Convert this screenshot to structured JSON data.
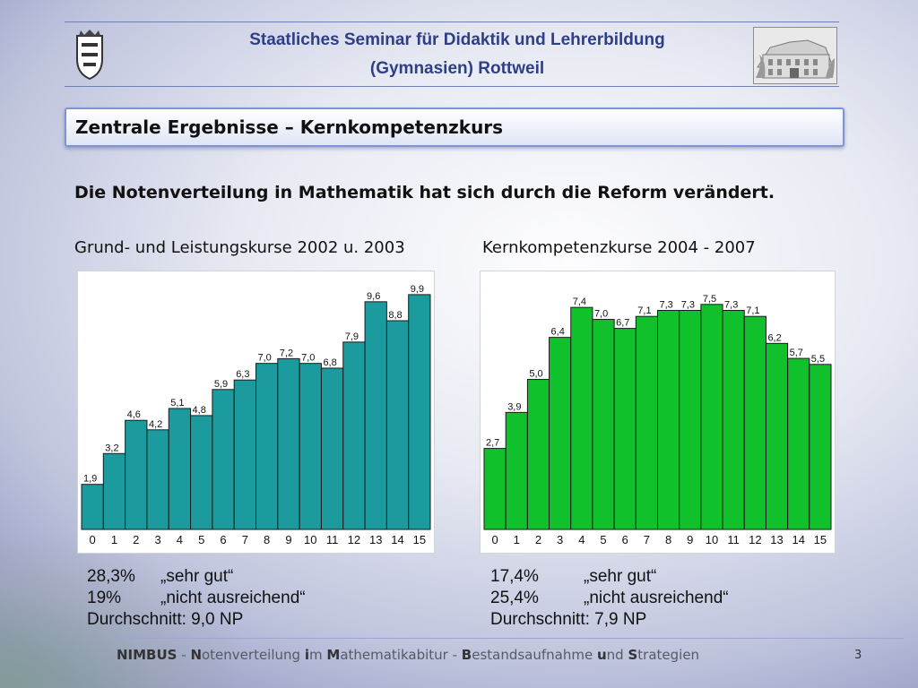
{
  "header": {
    "line1": "Staatliches Seminar für Didaktik und Lehrerbildung",
    "line2": "(Gymnasien) Rottweil"
  },
  "section_title": "Zentrale Ergebnisse – Kernkompetenzkurs",
  "headline": "Die Notenverteilung in Mathematik hat sich durch die Reform verändert.",
  "chart_data": [
    {
      "type": "bar",
      "title": "Grund- und Leistungskurse 2002 u. 2003",
      "categories": [
        "0",
        "1",
        "2",
        "3",
        "4",
        "5",
        "6",
        "7",
        "8",
        "9",
        "10",
        "11",
        "12",
        "13",
        "14",
        "15"
      ],
      "values": [
        1.9,
        3.2,
        4.6,
        4.2,
        5.1,
        4.8,
        5.9,
        6.3,
        7.0,
        7.2,
        7.0,
        6.8,
        7.9,
        9.6,
        8.8,
        9.9
      ],
      "value_labels": [
        "1,9",
        "3,2",
        "4,6",
        "4,2",
        "5,1",
        "4,8",
        "5,9",
        "6,3",
        "7,0",
        "7,2",
        "7,0",
        "6,8",
        "7,9",
        "9,6",
        "8,8",
        "9,9"
      ],
      "color": "#1c9b9e",
      "ylim": [
        0,
        10.5
      ]
    },
    {
      "type": "bar",
      "title": "Kernkompetenzkurse 2004 - 2007",
      "categories": [
        "0",
        "1",
        "2",
        "3",
        "4",
        "5",
        "6",
        "7",
        "8",
        "9",
        "10",
        "11",
        "12",
        "13",
        "14",
        "15"
      ],
      "values": [
        2.7,
        3.9,
        5.0,
        6.4,
        7.4,
        7.0,
        6.7,
        7.1,
        7.3,
        7.3,
        7.5,
        7.3,
        7.1,
        6.2,
        5.7,
        5.5
      ],
      "value_labels": [
        "2,7",
        "3,9",
        "5,0",
        "6,4",
        "7,4",
        "7,0",
        "6,7",
        "7,1",
        "7,3",
        "7,3",
        "7,5",
        "7,3",
        "7,1",
        "6,2",
        "5,7",
        "5,5"
      ],
      "color": "#11c12b",
      "ylim": [
        0,
        8.3
      ]
    }
  ],
  "stats_left": {
    "row1_pct": "28,3%",
    "row1_text": "„sehr gut“",
    "row2_pct": "19%",
    "row2_text": "„nicht ausreichend“",
    "row3": "Durchschnitt: 9,0 NP"
  },
  "stats_right": {
    "row1_pct": "17,4%",
    "row1_text": "„sehr gut“",
    "row2_pct": "25,4%",
    "row2_text": "„nicht ausreichend“",
    "row3": "Durchschnitt: 7,9 NP"
  },
  "footer": {
    "p1": "NIMBUS",
    "p2": " - ",
    "p3": "N",
    "p4": "otenverteilung ",
    "p5": "i",
    "p6": "m ",
    "p7": "M",
    "p8": "athematikabitur - ",
    "p9": "B",
    "p10": "estandsaufnahme ",
    "p11": "u",
    "p12": "nd ",
    "p13": "S",
    "p14": "trategien"
  },
  "page_number": "3"
}
